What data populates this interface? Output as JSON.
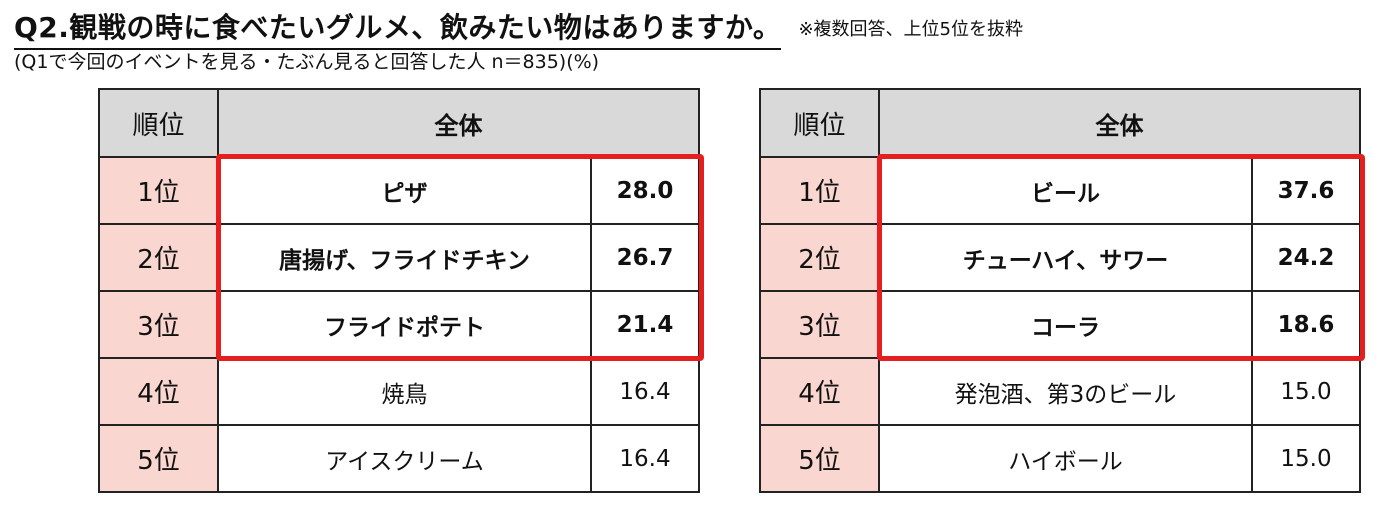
{
  "title": "Q2.観戦の時に食べたいグルメ、飲みたい物はありますか。",
  "note": "※複数回答、上位5位を抜粋",
  "subtitle": "(Q1で今回のイベントを見る・たぶん見ると回答した人 n＝835)(%)",
  "colors": {
    "rank_cell": "#f9d6cf",
    "header": "#d9d9d9",
    "highlight": "#e51f1f"
  },
  "chart_data": [
    {
      "type": "table",
      "columns": [
        "順位",
        "全体"
      ],
      "rows": [
        {
          "rank": "1位",
          "item": "ピザ",
          "value": "28.0"
        },
        {
          "rank": "2位",
          "item": "唐揚げ、フライドチキン",
          "value": "26.7"
        },
        {
          "rank": "3位",
          "item": "フライドポテト",
          "value": "21.4"
        },
        {
          "rank": "4位",
          "item": "焼鳥",
          "value": "16.4"
        },
        {
          "rank": "5位",
          "item": "アイスクリーム",
          "value": "16.4"
        }
      ]
    },
    {
      "type": "table",
      "columns": [
        "順位",
        "全体"
      ],
      "rows": [
        {
          "rank": "1位",
          "item": "ビール",
          "value": "37.6"
        },
        {
          "rank": "2位",
          "item": "チューハイ、サワー",
          "value": "24.2"
        },
        {
          "rank": "3位",
          "item": "コーラ",
          "value": "18.6"
        },
        {
          "rank": "4位",
          "item": "発泡酒、第3のビール",
          "value": "15.0"
        },
        {
          "rank": "5位",
          "item": "ハイボール",
          "value": "15.0"
        }
      ]
    }
  ]
}
